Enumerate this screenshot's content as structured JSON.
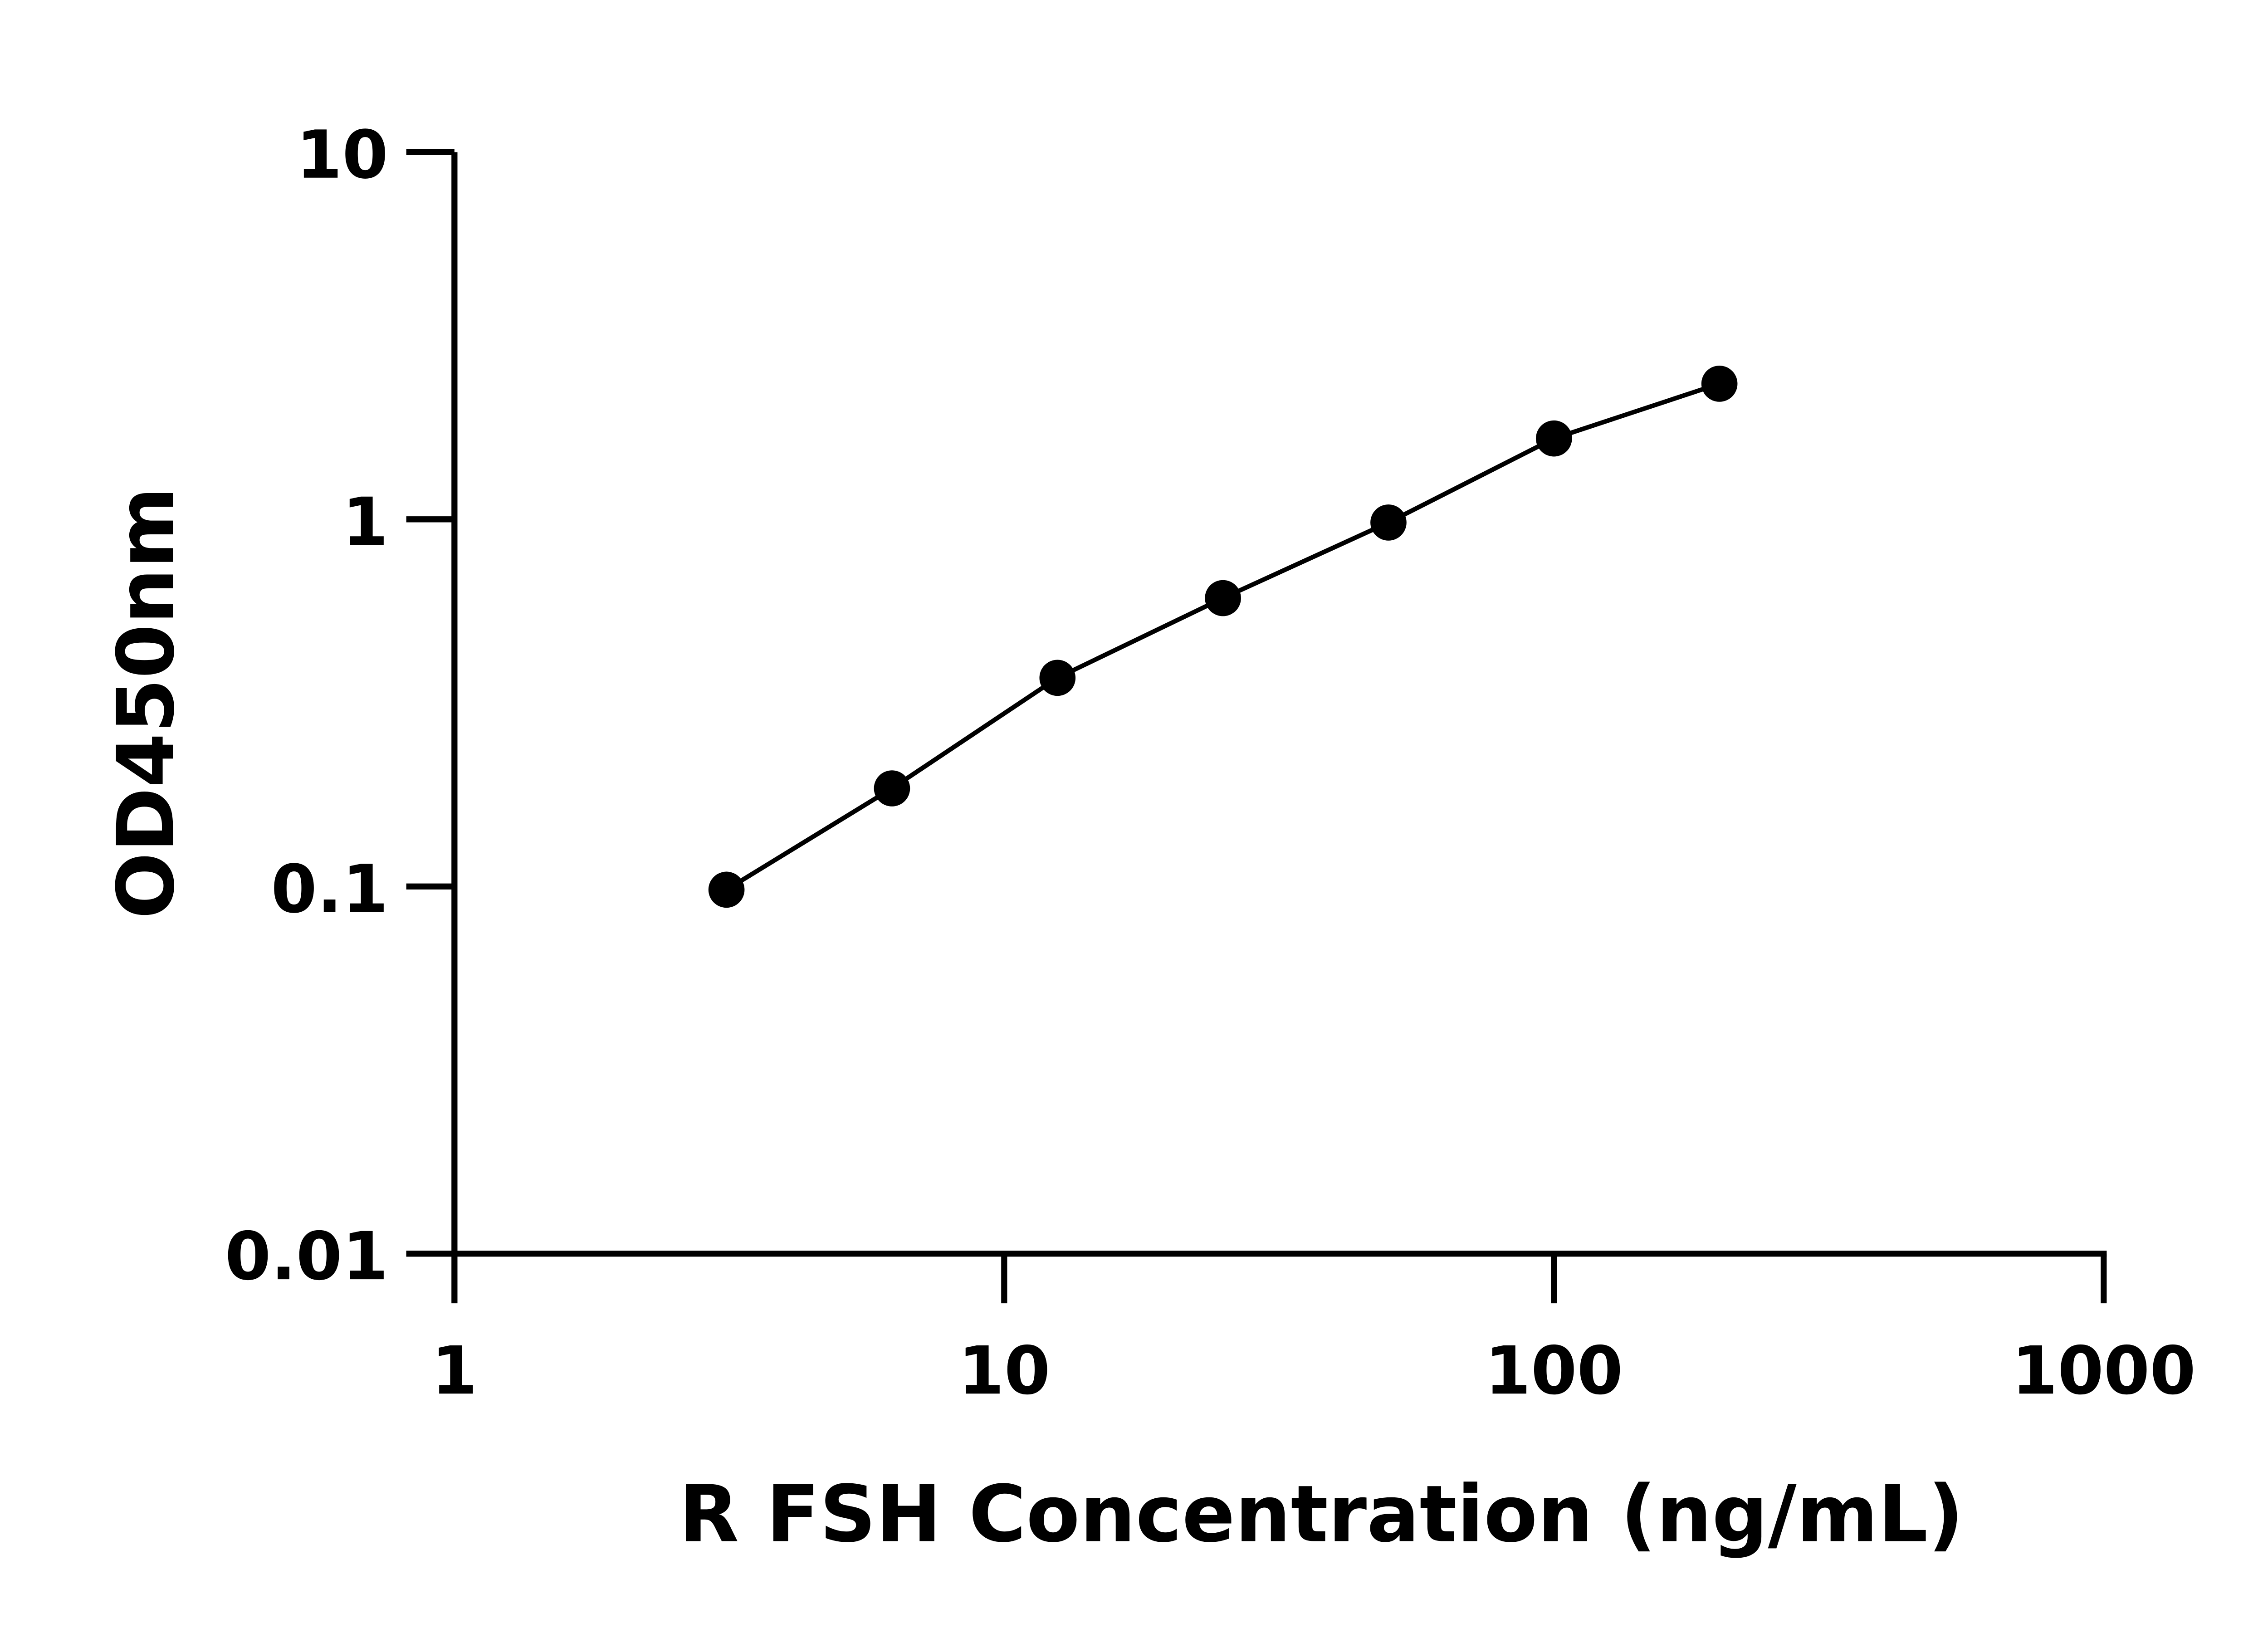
{
  "chart_data": {
    "type": "line",
    "title": "",
    "xlabel": "R FSH Concentration (ng/mL)",
    "ylabel": "OD450nm",
    "x_scale": "log",
    "y_scale": "log",
    "xlim": [
      1,
      1000
    ],
    "ylim": [
      0.01,
      10
    ],
    "x_ticks": [
      1,
      10,
      100,
      1000
    ],
    "x_tick_labels": [
      "1",
      "10",
      "100",
      "1000"
    ],
    "y_ticks": [
      0.01,
      0.1,
      1,
      10
    ],
    "y_tick_labels": [
      "0.01",
      "0.1",
      "1",
      "10"
    ],
    "grid": false,
    "series": [
      {
        "x": [
          3.125,
          6.25,
          12.5,
          25,
          50,
          100,
          200
        ],
        "y": [
          0.098,
          0.185,
          0.37,
          0.61,
          0.98,
          1.66,
          2.34
        ],
        "marker": "circle",
        "color": "#000000"
      }
    ]
  }
}
